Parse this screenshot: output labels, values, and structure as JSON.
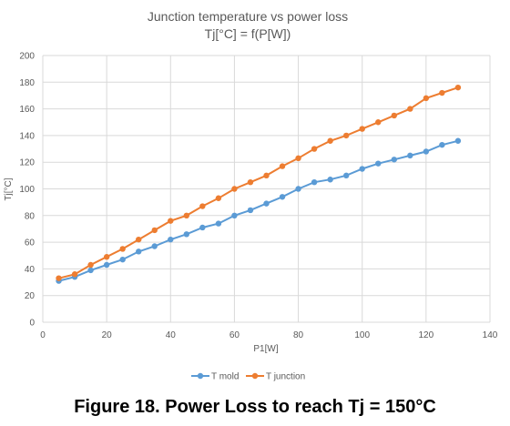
{
  "caption": "Figure 18. Power Loss to reach Tj = 150°C",
  "chart_data": {
    "type": "line",
    "title": "Junction temperature vs power loss",
    "subtitle": "Tj[°C] = f(P[W])",
    "xlabel": "P1[W]",
    "ylabel": "Tj[°C]",
    "xlim": [
      0,
      140
    ],
    "ylim": [
      0,
      200
    ],
    "xticks": [
      0,
      20,
      40,
      60,
      80,
      100,
      120,
      140
    ],
    "yticks": [
      0,
      20,
      40,
      60,
      80,
      100,
      120,
      140,
      160,
      180,
      200
    ],
    "grid": true,
    "legend_position": "bottom",
    "x": [
      5,
      10,
      15,
      20,
      25,
      30,
      35,
      40,
      45,
      50,
      55,
      60,
      65,
      70,
      75,
      80,
      85,
      90,
      95,
      100,
      105,
      110,
      115,
      120,
      125,
      130
    ],
    "series": [
      {
        "name": "T mold",
        "color": "#5b9bd5",
        "values": [
          31,
          34,
          39,
          43,
          47,
          53,
          57,
          62,
          66,
          71,
          74,
          80,
          84,
          89,
          94,
          100,
          105,
          107,
          110,
          115,
          119,
          122,
          125,
          128,
          133,
          136
        ]
      },
      {
        "name": "T junction",
        "color": "#ed7d31",
        "values": [
          33,
          36,
          43,
          49,
          55,
          62,
          69,
          76,
          80,
          87,
          93,
          100,
          105,
          110,
          117,
          123,
          130,
          136,
          140,
          145,
          150,
          155,
          160,
          168,
          172,
          176
        ]
      }
    ]
  }
}
